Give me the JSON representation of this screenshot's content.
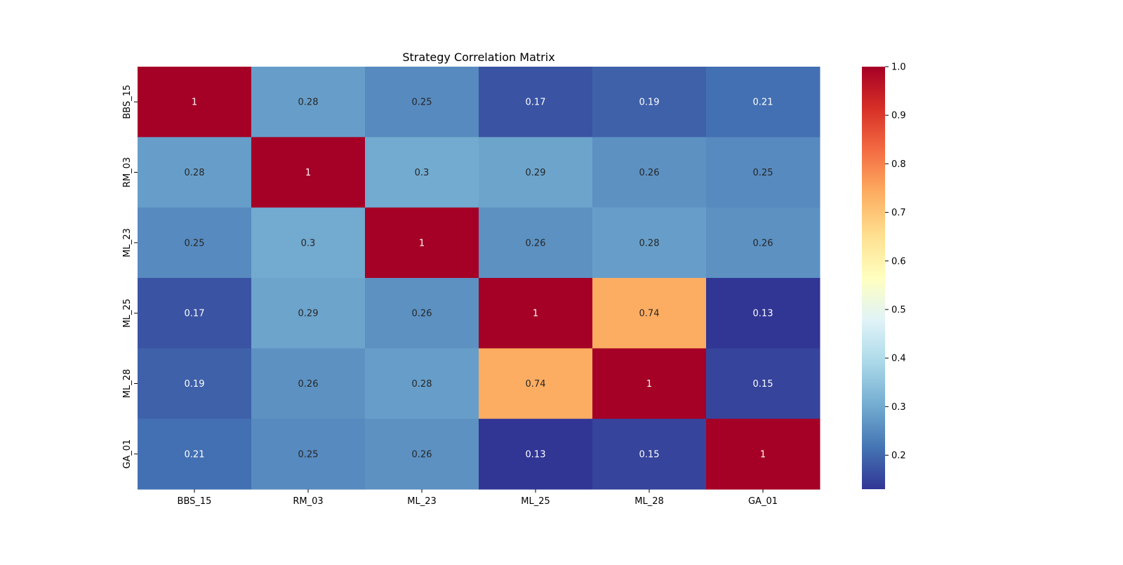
{
  "chart_data": {
    "type": "heatmap",
    "title": "Strategy Correlation Matrix",
    "xlabel": "",
    "ylabel": "",
    "x_labels": [
      "BBS_15",
      "RM_03",
      "ML_23",
      "ML_25",
      "ML_28",
      "GA_01"
    ],
    "y_labels": [
      "BBS_15",
      "RM_03",
      "ML_23",
      "ML_25",
      "ML_28",
      "GA_01"
    ],
    "values": [
      [
        1,
        0.28,
        0.25,
        0.17,
        0.19,
        0.21
      ],
      [
        0.28,
        1,
        0.3,
        0.29,
        0.26,
        0.25
      ],
      [
        0.25,
        0.3,
        1,
        0.26,
        0.28,
        0.26
      ],
      [
        0.17,
        0.29,
        0.26,
        1,
        0.74,
        0.13
      ],
      [
        0.19,
        0.26,
        0.28,
        0.74,
        1,
        0.15
      ],
      [
        0.21,
        0.25,
        0.26,
        0.13,
        0.15,
        1
      ]
    ],
    "value_labels": [
      [
        "1",
        "0.28",
        "0.25",
        "0.17",
        "0.19",
        "0.21"
      ],
      [
        "0.28",
        "1",
        "0.3",
        "0.29",
        "0.26",
        "0.25"
      ],
      [
        "0.25",
        "0.3",
        "1",
        "0.26",
        "0.28",
        "0.26"
      ],
      [
        "0.17",
        "0.29",
        "0.26",
        "1",
        "0.74",
        "0.13"
      ],
      [
        "0.19",
        "0.26",
        "0.28",
        "0.74",
        "1",
        "0.15"
      ],
      [
        "0.21",
        "0.25",
        "0.26",
        "0.13",
        "0.15",
        "1"
      ]
    ],
    "colormap": "RdYlBu_r",
    "color_range": [
      0.13,
      1.0
    ],
    "colorbar_ticks": [
      "0.2",
      "0.3",
      "0.4",
      "0.5",
      "0.6",
      "0.7",
      "0.8",
      "0.9",
      "1.0"
    ],
    "colorbar_tick_values": [
      0.2,
      0.3,
      0.4,
      0.5,
      0.6,
      0.7,
      0.8,
      0.9,
      1.0
    ],
    "colormap_stops": [
      "#313695",
      "#4575b4",
      "#74add1",
      "#abd9e9",
      "#e0f3f8",
      "#ffffbf",
      "#fee090",
      "#fdae61",
      "#f46d43",
      "#d73027",
      "#a50026"
    ],
    "text_colors": {
      "light": "#ffffff",
      "dark": "#262626"
    },
    "grid": false
  }
}
